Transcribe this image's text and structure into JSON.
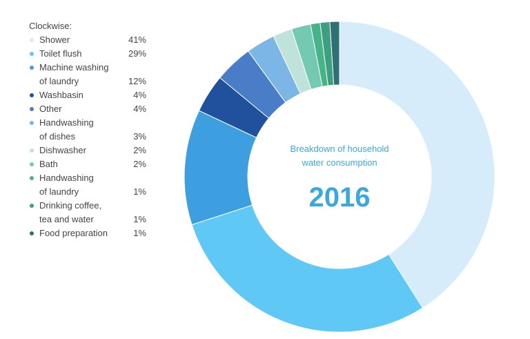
{
  "legend": {
    "heading": "Clockwise:"
  },
  "chart_data": {
    "type": "pie",
    "subtitle_lines": [
      "Breakdown of household",
      "water consumption"
    ],
    "year": "2016",
    "slices": [
      {
        "label_lines": [
          "Shower"
        ],
        "value": 41,
        "value_label": "41%",
        "color": "#d6ecfa"
      },
      {
        "label_lines": [
          "Toilet flush"
        ],
        "value": 29,
        "value_label": "29%",
        "color": "#5fc8f5"
      },
      {
        "label_lines": [
          "Machine washing",
          "of laundry"
        ],
        "value": 12,
        "value_label": "12%",
        "color": "#3d9fe0"
      },
      {
        "label_lines": [
          "Washbasin"
        ],
        "value": 4,
        "value_label": "4%",
        "color": "#21519c"
      },
      {
        "label_lines": [
          "Other"
        ],
        "value": 4,
        "value_label": "4%",
        "color": "#4a7dc8"
      },
      {
        "label_lines": [
          "Handwashing",
          "of dishes"
        ],
        "value": 3,
        "value_label": "3%",
        "color": "#7bb6e6"
      },
      {
        "label_lines": [
          "Dishwasher"
        ],
        "value": 2,
        "value_label": "2%",
        "color": "#bfe3da"
      },
      {
        "label_lines": [
          "Bath"
        ],
        "value": 2,
        "value_label": "2%",
        "color": "#74c9b2"
      },
      {
        "label_lines": [
          "Handwashing",
          "of laundry"
        ],
        "value": 1,
        "value_label": "1%",
        "color": "#47b488"
      },
      {
        "label_lines": [
          "Drinking coffee,",
          "tea and water"
        ],
        "value": 1,
        "value_label": "1%",
        "color": "#3e9f80"
      },
      {
        "label_lines": [
          "Food preparation"
        ],
        "value": 1,
        "value_label": "1%",
        "color": "#2e7076"
      }
    ]
  }
}
